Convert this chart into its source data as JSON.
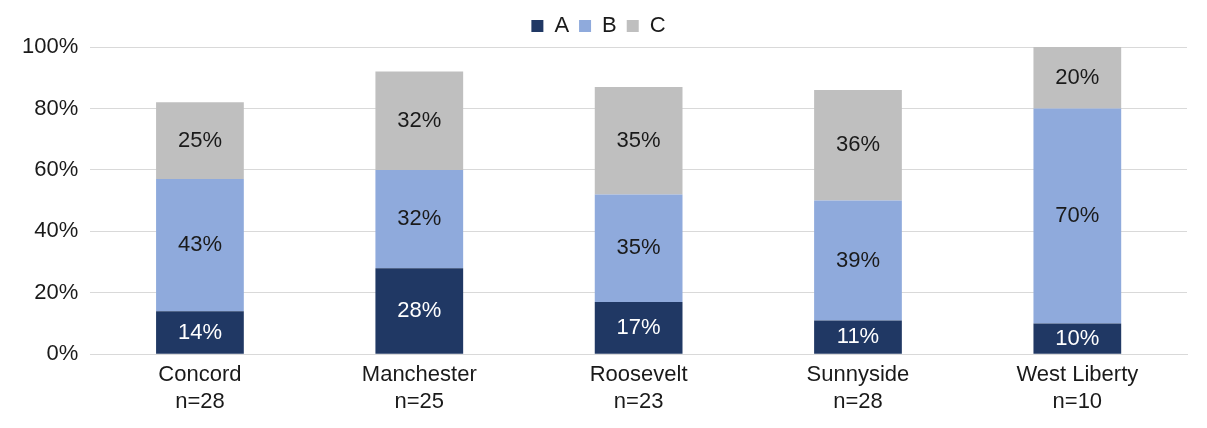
{
  "chart_data": {
    "type": "bar",
    "stacked": true,
    "categories": [
      "Concord\nn=28",
      "Manchester\nn=25",
      "Roosevelt\nn=23",
      "Sunnyside\nn=28",
      "West Liberty\nn=10"
    ],
    "series": [
      {
        "name": "A",
        "color": "#203864",
        "values": [
          14,
          28,
          17,
          11,
          10
        ],
        "value_labels": [
          "14%",
          "28%",
          "17%",
          "11%",
          "10%"
        ]
      },
      {
        "name": "B",
        "color": "#8faadc",
        "values": [
          43,
          32,
          35,
          39,
          70
        ],
        "value_labels": [
          "43%",
          "32%",
          "35%",
          "39%",
          "70%"
        ]
      },
      {
        "name": "C",
        "color": "#bfbfbf",
        "values": [
          25,
          32,
          35,
          36,
          20
        ],
        "value_labels": [
          "25%",
          "32%",
          "35%",
          "36%",
          "20%"
        ]
      }
    ],
    "ylim": [
      0,
      100
    ],
    "yticks": [
      {
        "value": 0,
        "label": "0%"
      },
      {
        "value": 20,
        "label": "20%"
      },
      {
        "value": 40,
        "label": "40%"
      },
      {
        "value": 60,
        "label": "60%"
      },
      {
        "value": 80,
        "label": "80%"
      },
      {
        "value": 100,
        "label": "100%"
      }
    ],
    "grid": "y",
    "legend": "top"
  }
}
